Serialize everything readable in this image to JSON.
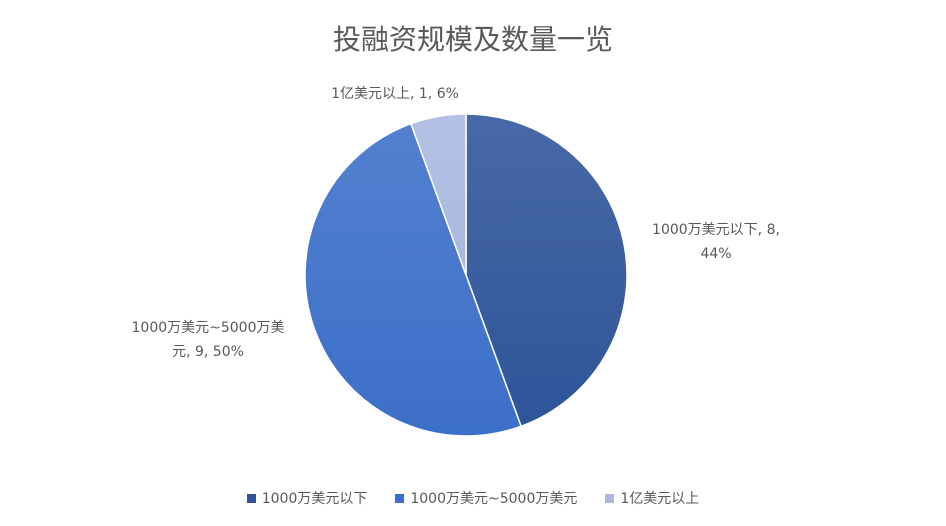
{
  "chart_data": {
    "type": "pie",
    "title": "投融资规模及数量一览",
    "categories": [
      "1000万美元以下",
      "1000万美元~5000万美元",
      "1亿美元以上"
    ],
    "values": [
      8,
      9,
      1
    ],
    "percentages": [
      44,
      50,
      6
    ],
    "colors": [
      "#2f549a",
      "#3c6fc9",
      "#a9b9e0"
    ],
    "legend_position": "bottom",
    "data_labels": [
      {
        "line1": "1000万美元以下, 8,",
        "line2": "44%"
      },
      {
        "line1": "1000万美元~5000万美",
        "line2": "元, 9, 50%"
      },
      {
        "line1": "1亿美元以上, 1, 6%",
        "line2": ""
      }
    ]
  }
}
